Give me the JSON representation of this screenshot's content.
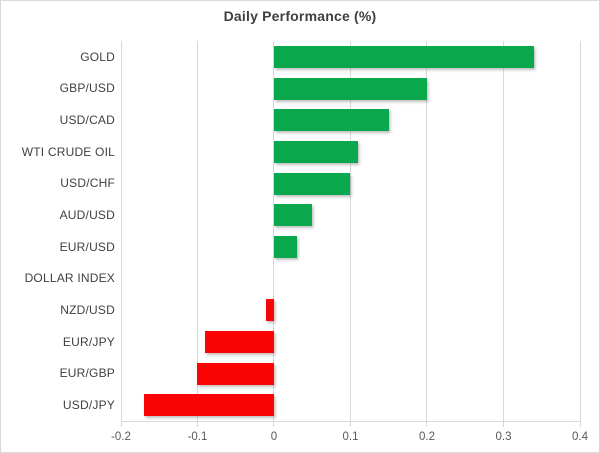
{
  "chart_data": {
    "type": "bar",
    "orientation": "horizontal",
    "title": "Daily Performance (%)",
    "categories": [
      "GOLD",
      "GBP/USD",
      "USD/CAD",
      "WTI CRUDE OIL",
      "USD/CHF",
      "AUD/USD",
      "EUR/USD",
      "DOLLAR INDEX",
      "NZD/USD",
      "EUR/JPY",
      "EUR/GBP",
      "USD/JPY"
    ],
    "values": [
      0.34,
      0.2,
      0.15,
      0.11,
      0.1,
      0.05,
      0.03,
      0.0,
      -0.01,
      -0.09,
      -0.1,
      -0.17
    ],
    "xlim": [
      -0.2,
      0.4
    ],
    "x_ticks": [
      -0.2,
      -0.1,
      0,
      0.1,
      0.2,
      0.3,
      0.4
    ],
    "x_tick_labels": [
      "-0.2",
      "-0.1",
      "0",
      "0.1",
      "0.2",
      "0.3",
      "0.4"
    ],
    "xlabel": "",
    "ylabel": "",
    "grid": "vertical",
    "legend": "none",
    "colors": {
      "positive": "#0aa84c",
      "negative": "#fa0505",
      "gridline": "#d9d9d9",
      "title_text": "#3f3f3f",
      "label_text": "#404040",
      "tick_text": "#595959"
    }
  }
}
